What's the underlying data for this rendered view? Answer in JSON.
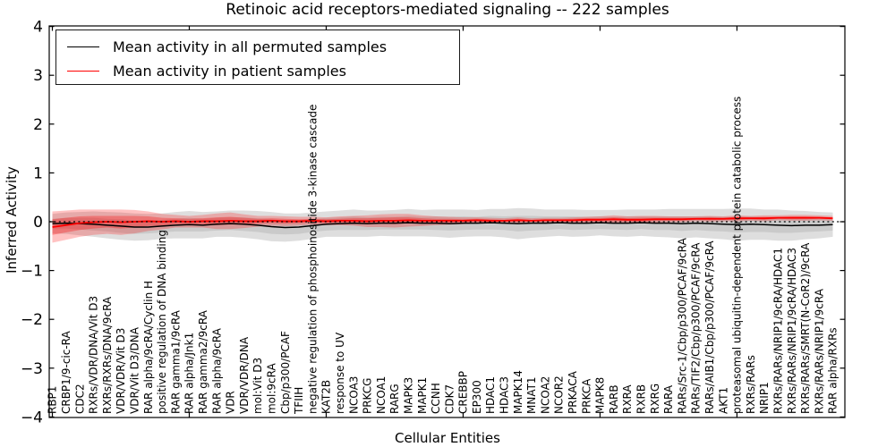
{
  "figure": {
    "title": "Retinoic acid receptors-mediated signaling -- 222 samples",
    "xlabel": "Cellular Entities",
    "ylabel": "Inferred Activity",
    "legend": [
      {
        "label": "Mean activity in all permuted samples",
        "color": "#000000"
      },
      {
        "label": "Mean activity in patient samples",
        "color": "#ff0000"
      }
    ]
  },
  "chart_data": {
    "type": "line",
    "title": "Retinoic acid receptors-mediated signaling -- 222 samples",
    "xlabel": "Cellular Entities",
    "ylabel": "Inferred Activity",
    "ylim": [
      -4,
      4
    ],
    "yticks": [
      -4,
      -3,
      -2,
      -1,
      0,
      1,
      2,
      3,
      4
    ],
    "grid": false,
    "legend_position": "upper left",
    "zero_line": {
      "style": "dotted",
      "color": "#000000",
      "y": 0
    },
    "band_colors": {
      "permuted": "rgba(0,0,0,0.13)",
      "patient": "rgba(255,0,0,0.24)"
    },
    "categories": [
      "RBP1",
      "CRBP1/9-cic-RA",
      "CDC2",
      "RXRs/VDR/DNA/Vit D3",
      "RXRs/RXRs/DNA/9cRA",
      "VDR/VDR/Vit D3",
      "VDR/Vit D3/DNA",
      "RAR alpha/9cRA/Cyclin H",
      "positive regulation of DNA binding",
      "RAR gamma1/9cRA",
      "RAR alpha/Jnk1",
      "RAR gamma2/9cRA",
      "RAR alpha/9cRA",
      "VDR",
      "VDR/VDR/DNA",
      "mol:Vit D3",
      "mol:9cRA",
      "Cbp/p300/PCAF",
      "TFIIH",
      "negative regulation of phosphoinositide 3-kinase cascade",
      "KAT2B",
      "response to UV",
      "NCOA3",
      "PRKCG",
      "NCOA1",
      "RARG",
      "MAPK3",
      "MAPK1",
      "CCNH",
      "CDK7",
      "CREBBP",
      "EP300",
      "HDAC1",
      "HDAC3",
      "MAPK14",
      "MNAT1",
      "NCOA2",
      "NCOR2",
      "PRKACA",
      "PRKCA",
      "MAPK8",
      "RARB",
      "RXRA",
      "RXRB",
      "RXRG",
      "RARA",
      "RARs/Src-1/Cbp/p300/PCAF/9cRA",
      "RARs/TIF2/Cbp/p300/PCAF/9cRA",
      "RARs/AIB1/Cbp/p300/PCAF/9cRA",
      "AKT1",
      "proteasomal ubiquitin-dependent protein catabolic process",
      "RXRs/RARs",
      "NRIP1",
      "RXRs/RARs/NRIP1/9cRA/HDAC1",
      "RXRs/RARs/NRIP1/9cRA/HDAC3",
      "RXRs/RARs/SMRT(N-CoR2)/9cRA",
      "RXRs/RARs/NRIP1/9cRA",
      "RAR alpha/RXRs"
    ],
    "series": [
      {
        "name": "Mean activity in all permuted samples",
        "color": "#000000",
        "values": [
          -0.04,
          -0.03,
          -0.04,
          -0.05,
          -0.07,
          -0.09,
          -0.11,
          -0.11,
          -0.09,
          -0.07,
          -0.06,
          -0.07,
          -0.05,
          -0.04,
          -0.05,
          -0.07,
          -0.1,
          -0.12,
          -0.11,
          -0.08,
          -0.05,
          -0.04,
          -0.03,
          -0.04,
          -0.03,
          -0.03,
          -0.02,
          -0.03,
          -0.03,
          -0.04,
          -0.03,
          -0.03,
          -0.02,
          -0.03,
          -0.04,
          -0.03,
          -0.03,
          -0.02,
          -0.03,
          -0.03,
          -0.02,
          -0.03,
          -0.03,
          -0.02,
          -0.03,
          -0.03,
          -0.04,
          -0.03,
          -0.04,
          -0.05,
          -0.06,
          -0.05,
          -0.06,
          -0.07,
          -0.08,
          -0.07,
          -0.07,
          -0.06
        ],
        "band_outer": [
          0.2,
          0.22,
          0.24,
          0.26,
          0.27,
          0.28,
          0.28,
          0.27,
          0.26,
          0.27,
          0.28,
          0.27,
          0.26,
          0.27,
          0.28,
          0.29,
          0.3,
          0.29,
          0.28,
          0.27,
          0.26,
          0.27,
          0.28,
          0.27,
          0.26,
          0.27,
          0.28,
          0.27,
          0.28,
          0.29,
          0.28,
          0.27,
          0.28,
          0.29,
          0.32,
          0.3,
          0.28,
          0.27,
          0.28,
          0.27,
          0.26,
          0.27,
          0.28,
          0.27,
          0.28,
          0.29,
          0.3,
          0.29,
          0.3,
          0.31,
          0.33,
          0.32,
          0.31,
          0.32,
          0.31,
          0.29,
          0.27,
          0.25
        ],
        "band_inner": [
          0.1,
          0.11,
          0.12,
          0.13,
          0.13,
          0.14,
          0.14,
          0.13,
          0.13,
          0.13,
          0.14,
          0.13,
          0.13,
          0.13,
          0.14,
          0.14,
          0.15,
          0.14,
          0.14,
          0.13,
          0.13,
          0.13,
          0.14,
          0.13,
          0.13,
          0.13,
          0.14,
          0.13,
          0.14,
          0.14,
          0.14,
          0.13,
          0.14,
          0.14,
          0.16,
          0.15,
          0.14,
          0.13,
          0.14,
          0.13,
          0.13,
          0.13,
          0.14,
          0.13,
          0.14,
          0.14,
          0.15,
          0.14,
          0.15,
          0.15,
          0.16,
          0.16,
          0.15,
          0.16,
          0.15,
          0.14,
          0.13,
          0.12
        ]
      },
      {
        "name": "Mean activity in patient samples",
        "color": "#ff0000",
        "values": [
          -0.11,
          -0.07,
          -0.03,
          -0.01,
          0.0,
          -0.01,
          0.0,
          0.01,
          0.0,
          0.01,
          0.0,
          0.01,
          0.01,
          0.02,
          0.01,
          0.01,
          0.02,
          0.01,
          0.01,
          0.02,
          0.01,
          0.02,
          0.02,
          0.01,
          0.02,
          0.02,
          0.03,
          0.02,
          0.02,
          0.02,
          0.02,
          0.03,
          0.02,
          0.02,
          0.03,
          0.02,
          0.03,
          0.03,
          0.03,
          0.04,
          0.04,
          0.05,
          0.04,
          0.04,
          0.05,
          0.05,
          0.05,
          0.06,
          0.06,
          0.06,
          0.07,
          0.07,
          0.07,
          0.08,
          0.08,
          0.08,
          0.08,
          0.07
        ],
        "band_outer": [
          0.32,
          0.3,
          0.28,
          0.26,
          0.25,
          0.26,
          0.24,
          0.2,
          0.16,
          0.13,
          0.12,
          0.13,
          0.16,
          0.17,
          0.14,
          0.11,
          0.1,
          0.1,
          0.09,
          0.08,
          0.08,
          0.09,
          0.1,
          0.12,
          0.13,
          0.14,
          0.13,
          0.11,
          0.09,
          0.08,
          0.07,
          0.06,
          0.06,
          0.05,
          0.06,
          0.05,
          0.05,
          0.05,
          0.06,
          0.06,
          0.07,
          0.08,
          0.07,
          0.08,
          0.07,
          0.06,
          0.06,
          0.05,
          0.06,
          0.05,
          0.06,
          0.05,
          0.06,
          0.05,
          0.06,
          0.06,
          0.05,
          0.05
        ],
        "band_inner": [
          0.16,
          0.15,
          0.14,
          0.13,
          0.12,
          0.13,
          0.12,
          0.1,
          0.08,
          0.06,
          0.06,
          0.06,
          0.08,
          0.08,
          0.07,
          0.05,
          0.05,
          0.05,
          0.04,
          0.04,
          0.04,
          0.04,
          0.05,
          0.06,
          0.06,
          0.07,
          0.06,
          0.05,
          0.04,
          0.04,
          0.03,
          0.03,
          0.03,
          0.02,
          0.03,
          0.02,
          0.02,
          0.02,
          0.03,
          0.03,
          0.03,
          0.04,
          0.03,
          0.04,
          0.03,
          0.03,
          0.03,
          0.02,
          0.03,
          0.02,
          0.03,
          0.02,
          0.03,
          0.02,
          0.03,
          0.03,
          0.02,
          0.02
        ]
      }
    ]
  }
}
